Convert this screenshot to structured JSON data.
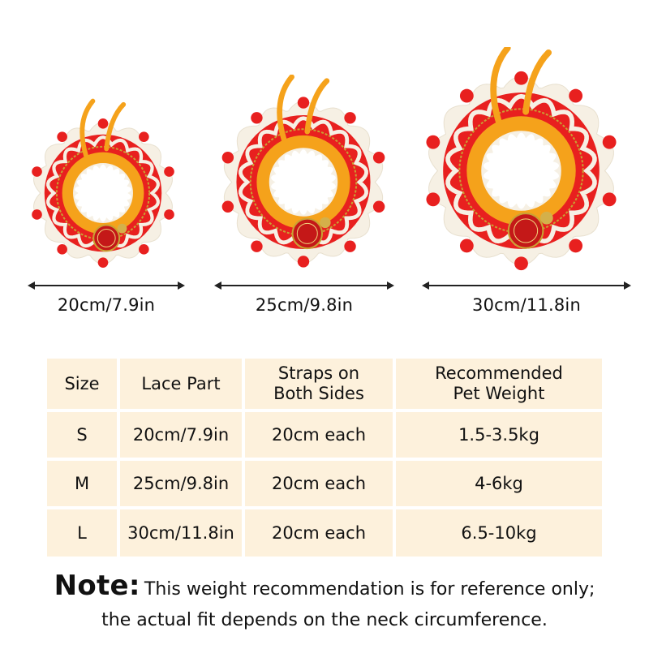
{
  "collars": [
    {
      "size": "S",
      "label": "20cm/7.9in"
    },
    {
      "size": "M",
      "label": "25cm/9.8in"
    },
    {
      "size": "L",
      "label": "30cm/11.8in"
    }
  ],
  "table": {
    "headers": {
      "size": "Size",
      "lace": "Lace Part",
      "straps_line1": "Straps on",
      "straps_line2": "Both Sides",
      "weight_line1": "Recommended",
      "weight_line2": "Pet Weight"
    },
    "rows": [
      {
        "size": "S",
        "lace": "20cm/7.9in",
        "straps": "20cm each",
        "weight": "1.5-3.5kg"
      },
      {
        "size": "M",
        "lace": "25cm/9.8in",
        "straps": "20cm each",
        "weight": "4-6kg"
      },
      {
        "size": "L",
        "lace": "30cm/11.8in",
        "straps": "20cm each",
        "weight": "6.5-10kg"
      }
    ]
  },
  "note": {
    "label": "Note:",
    "line1": "This weight recommendation is for reference only;",
    "line2": "the actual fit depends on the neck circumference."
  },
  "colors": {
    "red": "#e8201f",
    "orange": "#f5a21b",
    "cream": "#f6f0e4",
    "gold": "#c9a233",
    "table_bg": "#fdf1dc"
  }
}
